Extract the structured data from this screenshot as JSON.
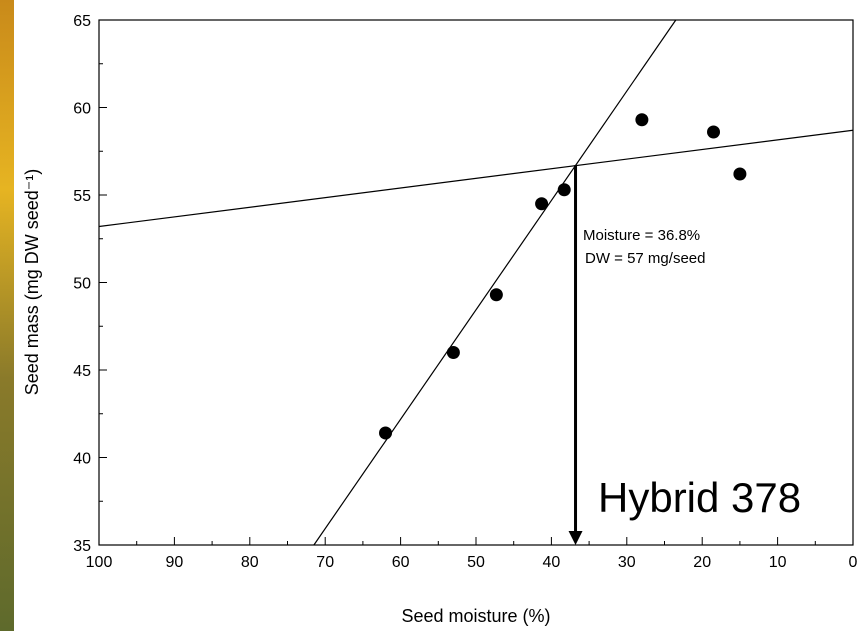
{
  "chart_data": {
    "type": "scatter",
    "xlabel": "Seed moisture (%)",
    "ylabel": "Seed mass (mg DW seed⁻¹)",
    "series": [
      {
        "color": "#000000",
        "x": [
          62,
          53,
          47.3,
          41.3,
          38.3,
          28,
          18.5,
          15
        ],
        "values": [
          41.4,
          46,
          49.3,
          54.5,
          55.3,
          59.3,
          58.6,
          56.2
        ]
      }
    ],
    "fit_lines": [
      {
        "x": [
          71.5,
          23.5
        ],
        "y": [
          35,
          65
        ]
      },
      {
        "x": [
          100,
          0
        ],
        "y": [
          53.2,
          58.7
        ]
      }
    ],
    "arrow": {
      "x": 36.8,
      "y": [
        56.7,
        35
      ]
    },
    "annotations": [
      "Moisture = 36.8%",
      "DW = 57 mg/seed"
    ],
    "label": "Hybrid 378",
    "xlim": [
      100,
      0
    ],
    "ylim": [
      35,
      65
    ],
    "xticks": [
      100,
      90,
      80,
      70,
      60,
      50,
      40,
      30,
      20,
      10,
      0
    ],
    "yticks": [
      35,
      40,
      45,
      50,
      55,
      60,
      65
    ],
    "xminorticks": [
      95,
      85,
      75,
      65,
      55,
      45,
      35,
      25,
      15,
      5
    ],
    "yminorticks": [
      37.5,
      42.5,
      47.5,
      52.5,
      57.5,
      62.5
    ]
  }
}
